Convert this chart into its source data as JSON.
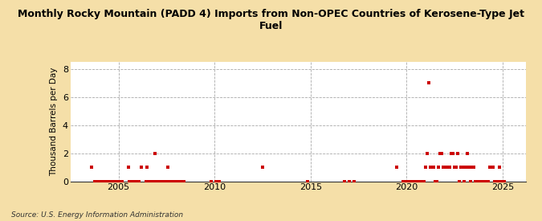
{
  "title": "Monthly Rocky Mountain (PADD 4) Imports from Non-OPEC Countries of Kerosene-Type Jet\nFuel",
  "ylabel": "Thousand Barrels per Day",
  "source": "Source: U.S. Energy Information Administration",
  "outer_bg": "#f5dfa8",
  "plot_bg": "#ffffff",
  "marker_color": "#cc0000",
  "ylim": [
    0,
    8.5
  ],
  "yticks": [
    0,
    2,
    4,
    6,
    8
  ],
  "xlim_start": 2002.5,
  "xlim_end": 2026.2,
  "xticks": [
    2005,
    2010,
    2015,
    2020,
    2025
  ],
  "data_points": [
    [
      2003.58,
      1.0
    ],
    [
      2003.75,
      0.0
    ],
    [
      2003.83,
      0.0
    ],
    [
      2003.92,
      0.0
    ],
    [
      2004.0,
      0.0
    ],
    [
      2004.08,
      0.0
    ],
    [
      2004.17,
      0.0
    ],
    [
      2004.25,
      0.0
    ],
    [
      2004.33,
      0.0
    ],
    [
      2004.42,
      0.0
    ],
    [
      2004.5,
      0.0
    ],
    [
      2004.58,
      0.0
    ],
    [
      2004.67,
      0.0
    ],
    [
      2004.75,
      0.0
    ],
    [
      2004.83,
      0.0
    ],
    [
      2004.92,
      0.0
    ],
    [
      2005.0,
      0.0
    ],
    [
      2005.08,
      0.0
    ],
    [
      2005.17,
      0.0
    ],
    [
      2005.5,
      1.0
    ],
    [
      2005.58,
      0.0
    ],
    [
      2005.67,
      0.0
    ],
    [
      2005.75,
      0.0
    ],
    [
      2005.83,
      0.0
    ],
    [
      2005.92,
      0.0
    ],
    [
      2006.0,
      0.0
    ],
    [
      2006.08,
      0.0
    ],
    [
      2006.17,
      1.0
    ],
    [
      2006.42,
      0.0
    ],
    [
      2006.5,
      1.0
    ],
    [
      2006.58,
      0.0
    ],
    [
      2006.67,
      0.0
    ],
    [
      2006.75,
      0.0
    ],
    [
      2006.83,
      0.0
    ],
    [
      2006.92,
      2.0
    ],
    [
      2007.0,
      0.0
    ],
    [
      2007.08,
      0.0
    ],
    [
      2007.17,
      0.0
    ],
    [
      2007.25,
      0.0
    ],
    [
      2007.33,
      0.0
    ],
    [
      2007.42,
      0.0
    ],
    [
      2007.5,
      0.0
    ],
    [
      2007.58,
      1.0
    ],
    [
      2007.67,
      0.0
    ],
    [
      2007.75,
      0.0
    ],
    [
      2007.83,
      0.0
    ],
    [
      2007.92,
      0.0
    ],
    [
      2008.0,
      0.0
    ],
    [
      2008.08,
      0.0
    ],
    [
      2008.17,
      0.0
    ],
    [
      2008.25,
      0.0
    ],
    [
      2008.33,
      0.0
    ],
    [
      2008.42,
      0.0
    ],
    [
      2009.83,
      0.0
    ],
    [
      2010.08,
      0.0
    ],
    [
      2010.25,
      0.0
    ],
    [
      2012.5,
      1.0
    ],
    [
      2014.83,
      0.0
    ],
    [
      2016.75,
      0.0
    ],
    [
      2017.0,
      0.0
    ],
    [
      2017.25,
      0.0
    ],
    [
      2019.5,
      1.0
    ],
    [
      2019.83,
      0.0
    ],
    [
      2020.0,
      0.0
    ],
    [
      2020.08,
      0.0
    ],
    [
      2020.17,
      0.0
    ],
    [
      2020.25,
      0.0
    ],
    [
      2020.33,
      0.0
    ],
    [
      2020.42,
      0.0
    ],
    [
      2020.5,
      0.0
    ],
    [
      2020.67,
      0.0
    ],
    [
      2020.75,
      0.0
    ],
    [
      2020.83,
      0.0
    ],
    [
      2020.92,
      0.0
    ],
    [
      2021.0,
      1.0
    ],
    [
      2021.08,
      2.0
    ],
    [
      2021.17,
      7.0
    ],
    [
      2021.25,
      1.0
    ],
    [
      2021.33,
      1.0
    ],
    [
      2021.42,
      1.0
    ],
    [
      2021.5,
      0.0
    ],
    [
      2021.58,
      0.0
    ],
    [
      2021.67,
      1.0
    ],
    [
      2021.75,
      2.0
    ],
    [
      2021.83,
      2.0
    ],
    [
      2021.92,
      1.0
    ],
    [
      2022.0,
      1.0
    ],
    [
      2022.08,
      1.0
    ],
    [
      2022.17,
      1.0
    ],
    [
      2022.25,
      1.0
    ],
    [
      2022.33,
      2.0
    ],
    [
      2022.42,
      2.0
    ],
    [
      2022.5,
      1.0
    ],
    [
      2022.58,
      1.0
    ],
    [
      2022.67,
      2.0
    ],
    [
      2022.75,
      0.0
    ],
    [
      2022.83,
      1.0
    ],
    [
      2022.92,
      1.0
    ],
    [
      2023.0,
      0.0
    ],
    [
      2023.08,
      1.0
    ],
    [
      2023.17,
      2.0
    ],
    [
      2023.25,
      1.0
    ],
    [
      2023.33,
      0.0
    ],
    [
      2023.42,
      1.0
    ],
    [
      2023.5,
      1.0
    ],
    [
      2023.58,
      0.0
    ],
    [
      2023.67,
      0.0
    ],
    [
      2023.75,
      0.0
    ],
    [
      2023.83,
      0.0
    ],
    [
      2023.92,
      0.0
    ],
    [
      2024.0,
      0.0
    ],
    [
      2024.08,
      0.0
    ],
    [
      2024.17,
      0.0
    ],
    [
      2024.25,
      0.0
    ],
    [
      2024.33,
      1.0
    ],
    [
      2024.42,
      1.0
    ],
    [
      2024.5,
      1.0
    ],
    [
      2024.58,
      0.0
    ],
    [
      2024.67,
      0.0
    ],
    [
      2024.75,
      0.0
    ],
    [
      2024.83,
      1.0
    ],
    [
      2024.92,
      0.0
    ],
    [
      2025.0,
      0.0
    ],
    [
      2025.08,
      0.0
    ]
  ]
}
